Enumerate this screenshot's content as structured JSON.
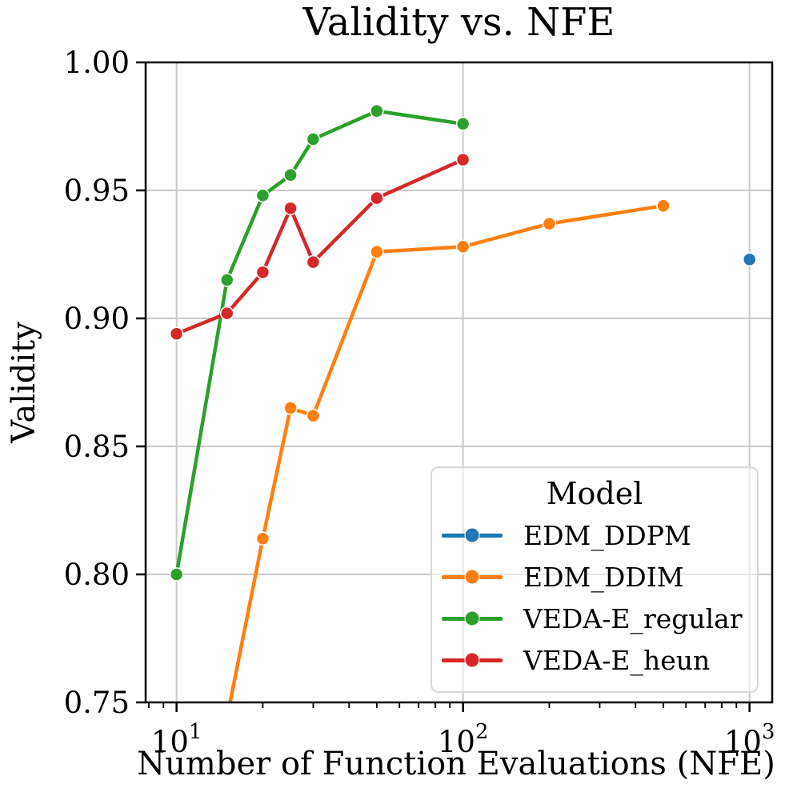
{
  "title": "Validity vs. NFE",
  "axes": {
    "xlabel": "Number of Function Evaluations (NFE)",
    "ylabel": "Validity",
    "x_scale": "log",
    "xlim": [
      7.8,
      1200
    ],
    "ylim": [
      0.75,
      1.0
    ],
    "xticks": [
      {
        "value": 10,
        "base": "10",
        "exp": "1"
      },
      {
        "value": 100,
        "base": "10",
        "exp": "2"
      },
      {
        "value": 1000,
        "base": "10",
        "exp": "3"
      }
    ],
    "yticks": [
      {
        "value": 1.0,
        "label": "1.00"
      },
      {
        "value": 0.95,
        "label": "0.95"
      },
      {
        "value": 0.9,
        "label": "0.90"
      },
      {
        "value": 0.85,
        "label": "0.85"
      },
      {
        "value": 0.8,
        "label": "0.80"
      },
      {
        "value": 0.75,
        "label": "0.75"
      }
    ],
    "grid": true
  },
  "colors": {
    "grid": "#c9c9c9",
    "spine": "#000000",
    "background": "#ffffff",
    "marker_edge": "#ffffff"
  },
  "legend": {
    "title": "Model",
    "position": "lower right",
    "entries": [
      {
        "label": "EDM_DDPM",
        "color": "#1f77b4"
      },
      {
        "label": "EDM_DDIM",
        "color": "#ff7f0e"
      },
      {
        "label": "VEDA-E_regular",
        "color": "#2ca02c"
      },
      {
        "label": "VEDA-E_heun",
        "color": "#d62728"
      }
    ]
  },
  "chart_data": {
    "type": "line",
    "title": "Validity vs. NFE",
    "xlabel": "Number of Function Evaluations (NFE)",
    "ylabel": "Validity",
    "x_scale": "log",
    "xlim": [
      7.8,
      1200
    ],
    "ylim": [
      0.75,
      1.0
    ],
    "legend_title": "Model",
    "series": [
      {
        "name": "EDM_DDPM",
        "color": "#1f77b4",
        "x": [
          1000
        ],
        "y": [
          0.923
        ]
      },
      {
        "name": "EDM_DDIM",
        "color": "#ff7f0e",
        "x": [
          15,
          20,
          25,
          30,
          50,
          100,
          200,
          500
        ],
        "y": [
          0.744,
          0.814,
          0.865,
          0.862,
          0.926,
          0.928,
          0.937,
          0.944
        ]
      },
      {
        "name": "VEDA-E_regular",
        "color": "#2ca02c",
        "x": [
          10,
          15,
          20,
          25,
          30,
          50,
          100
        ],
        "y": [
          0.8,
          0.915,
          0.948,
          0.956,
          0.97,
          0.981,
          0.976
        ]
      },
      {
        "name": "VEDA-E_heun",
        "color": "#d62728",
        "x": [
          10,
          15,
          20,
          25,
          30,
          50,
          100
        ],
        "y": [
          0.894,
          0.902,
          0.918,
          0.943,
          0.922,
          0.947,
          0.962
        ]
      }
    ]
  }
}
